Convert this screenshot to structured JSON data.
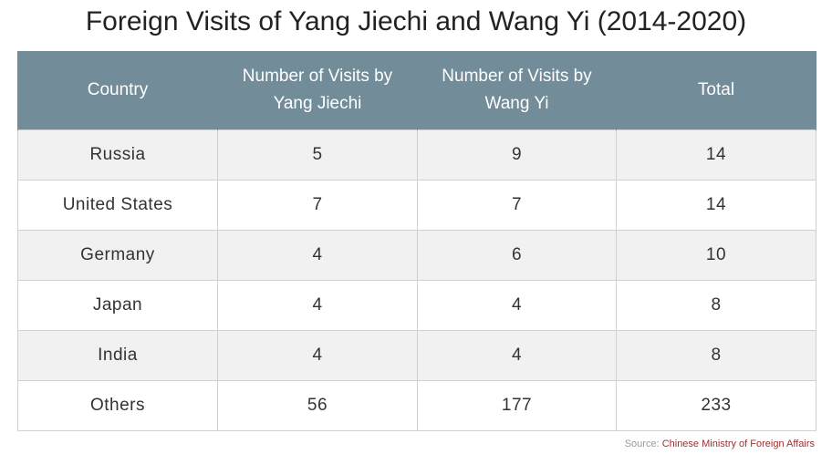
{
  "chart_data": {
    "type": "table",
    "title": "Foreign Visits of Yang Jiechi and Wang Yi (2014-2020)",
    "columns": [
      "Country",
      "Number of Visits by Yang Jiechi",
      "Number of Visits by Wang Yi",
      "Total"
    ],
    "rows": [
      [
        "Russia",
        "5",
        "9",
        "14"
      ],
      [
        "United States",
        "7",
        "7",
        "14"
      ],
      [
        "Germany",
        "4",
        "6",
        "10"
      ],
      [
        "Japan",
        "4",
        "4",
        "8"
      ],
      [
        "India",
        "4",
        "4",
        "8"
      ],
      [
        "Others",
        "56",
        "177",
        "233"
      ]
    ]
  },
  "source": {
    "label": "Source:",
    "name": "Chinese Ministry of Foreign Affairs"
  },
  "colors": {
    "header_background": "#728d99",
    "header_text": "#ffffff",
    "row_shaded": "#f1f1f1",
    "row_plain": "#ffffff",
    "source_link": "#a03030"
  }
}
